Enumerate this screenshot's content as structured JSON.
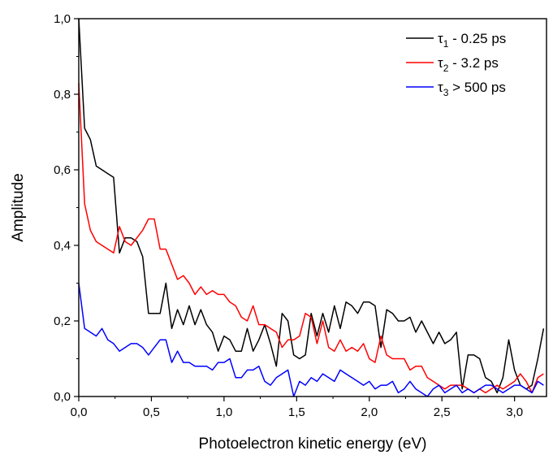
{
  "chart_data": {
    "type": "line",
    "title": "",
    "xlabel": "Photoelectron kinetic energy (eV)",
    "ylabel": "Amplitude",
    "xlim": [
      0,
      3.22
    ],
    "ylim": [
      0,
      1.0
    ],
    "grid": false,
    "legend_position": "top-right",
    "x_ticks": [
      0.0,
      0.5,
      1.0,
      1.5,
      2.0,
      2.5,
      3.0
    ],
    "x_tick_labels": [
      "0,0",
      "0,5",
      "1,0",
      "1,5",
      "2,0",
      "2,5",
      "3,0"
    ],
    "y_ticks": [
      0.0,
      0.2,
      0.4,
      0.6,
      0.8,
      1.0
    ],
    "y_tick_labels": [
      "0,0",
      "0,2",
      "0,4",
      "0,6",
      "0,8",
      "1,0"
    ],
    "x": [
      0.0,
      0.04,
      0.08,
      0.12,
      0.16,
      0.2,
      0.24,
      0.28,
      0.32,
      0.36,
      0.4,
      0.44,
      0.48,
      0.52,
      0.56,
      0.6,
      0.64,
      0.68,
      0.72,
      0.76,
      0.8,
      0.84,
      0.88,
      0.92,
      0.96,
      1.0,
      1.04,
      1.08,
      1.12,
      1.16,
      1.2,
      1.24,
      1.28,
      1.32,
      1.36,
      1.4,
      1.44,
      1.48,
      1.52,
      1.56,
      1.6,
      1.64,
      1.68,
      1.72,
      1.76,
      1.8,
      1.84,
      1.88,
      1.92,
      1.96,
      2.0,
      2.04,
      2.08,
      2.12,
      2.16,
      2.2,
      2.24,
      2.28,
      2.32,
      2.36,
      2.4,
      2.44,
      2.48,
      2.52,
      2.56,
      2.6,
      2.64,
      2.68,
      2.72,
      2.76,
      2.8,
      2.84,
      2.88,
      2.92,
      2.96,
      3.0,
      3.04,
      3.08,
      3.12,
      3.16,
      3.2
    ],
    "series": [
      {
        "name": "τ1 - 0.25 ps",
        "label_main": "τ",
        "label_sub": "1",
        "label_rest": " - 0.25 ps",
        "color": "#000000",
        "values": [
          1.0,
          0.71,
          0.68,
          0.61,
          0.6,
          0.59,
          0.58,
          0.38,
          0.42,
          0.42,
          0.41,
          0.37,
          0.22,
          0.22,
          0.22,
          0.3,
          0.18,
          0.23,
          0.19,
          0.24,
          0.19,
          0.23,
          0.19,
          0.17,
          0.12,
          0.16,
          0.15,
          0.12,
          0.12,
          0.18,
          0.12,
          0.15,
          0.19,
          0.14,
          0.08,
          0.22,
          0.2,
          0.11,
          0.1,
          0.11,
          0.22,
          0.16,
          0.22,
          0.17,
          0.24,
          0.18,
          0.25,
          0.24,
          0.22,
          0.25,
          0.25,
          0.24,
          0.13,
          0.23,
          0.22,
          0.2,
          0.2,
          0.21,
          0.17,
          0.2,
          0.17,
          0.14,
          0.17,
          0.14,
          0.15,
          0.17,
          0.02,
          0.11,
          0.11,
          0.1,
          0.05,
          0.04,
          0.01,
          0.05,
          0.15,
          0.07,
          0.03,
          0.02,
          0.03,
          0.1,
          0.18
        ]
      },
      {
        "name": "τ2 - 3.2 ps",
        "label_main": "τ",
        "label_sub": "2",
        "label_rest": " - 3.2 ps",
        "color": "#ff0000",
        "values": [
          0.83,
          0.51,
          0.44,
          0.41,
          0.4,
          0.39,
          0.38,
          0.45,
          0.41,
          0.4,
          0.42,
          0.44,
          0.47,
          0.47,
          0.39,
          0.39,
          0.35,
          0.31,
          0.32,
          0.3,
          0.27,
          0.29,
          0.27,
          0.28,
          0.27,
          0.27,
          0.25,
          0.24,
          0.21,
          0.2,
          0.24,
          0.19,
          0.19,
          0.18,
          0.17,
          0.13,
          0.15,
          0.15,
          0.16,
          0.22,
          0.21,
          0.14,
          0.2,
          0.13,
          0.12,
          0.15,
          0.12,
          0.13,
          0.12,
          0.14,
          0.1,
          0.09,
          0.16,
          0.11,
          0.1,
          0.1,
          0.1,
          0.07,
          0.08,
          0.08,
          0.05,
          0.04,
          0.03,
          0.02,
          0.03,
          0.03,
          0.03,
          0.02,
          0.01,
          0.02,
          0.01,
          0.02,
          0.03,
          0.02,
          0.03,
          0.04,
          0.06,
          0.04,
          0.01,
          0.05,
          0.06
        ]
      },
      {
        "name": "τ3 > 500 ps",
        "label_main": "τ",
        "label_sub": "3",
        "label_rest": " > 500 ps",
        "color": "#0000ff",
        "values": [
          0.3,
          0.18,
          0.17,
          0.16,
          0.18,
          0.15,
          0.14,
          0.12,
          0.13,
          0.14,
          0.14,
          0.13,
          0.11,
          0.13,
          0.15,
          0.15,
          0.09,
          0.12,
          0.09,
          0.09,
          0.08,
          0.08,
          0.08,
          0.07,
          0.09,
          0.09,
          0.1,
          0.05,
          0.05,
          0.07,
          0.07,
          0.08,
          0.04,
          0.03,
          0.05,
          0.06,
          0.07,
          0.0,
          0.04,
          0.03,
          0.05,
          0.04,
          0.06,
          0.05,
          0.04,
          0.07,
          0.06,
          0.05,
          0.04,
          0.03,
          0.04,
          0.02,
          0.03,
          0.03,
          0.04,
          0.01,
          0.02,
          0.04,
          0.02,
          0.01,
          0.0,
          0.02,
          0.03,
          0.01,
          0.02,
          0.03,
          0.01,
          0.02,
          0.01,
          0.02,
          0.03,
          0.03,
          0.02,
          0.01,
          0.02,
          0.03,
          0.03,
          0.02,
          0.01,
          0.04,
          0.03
        ]
      }
    ]
  }
}
